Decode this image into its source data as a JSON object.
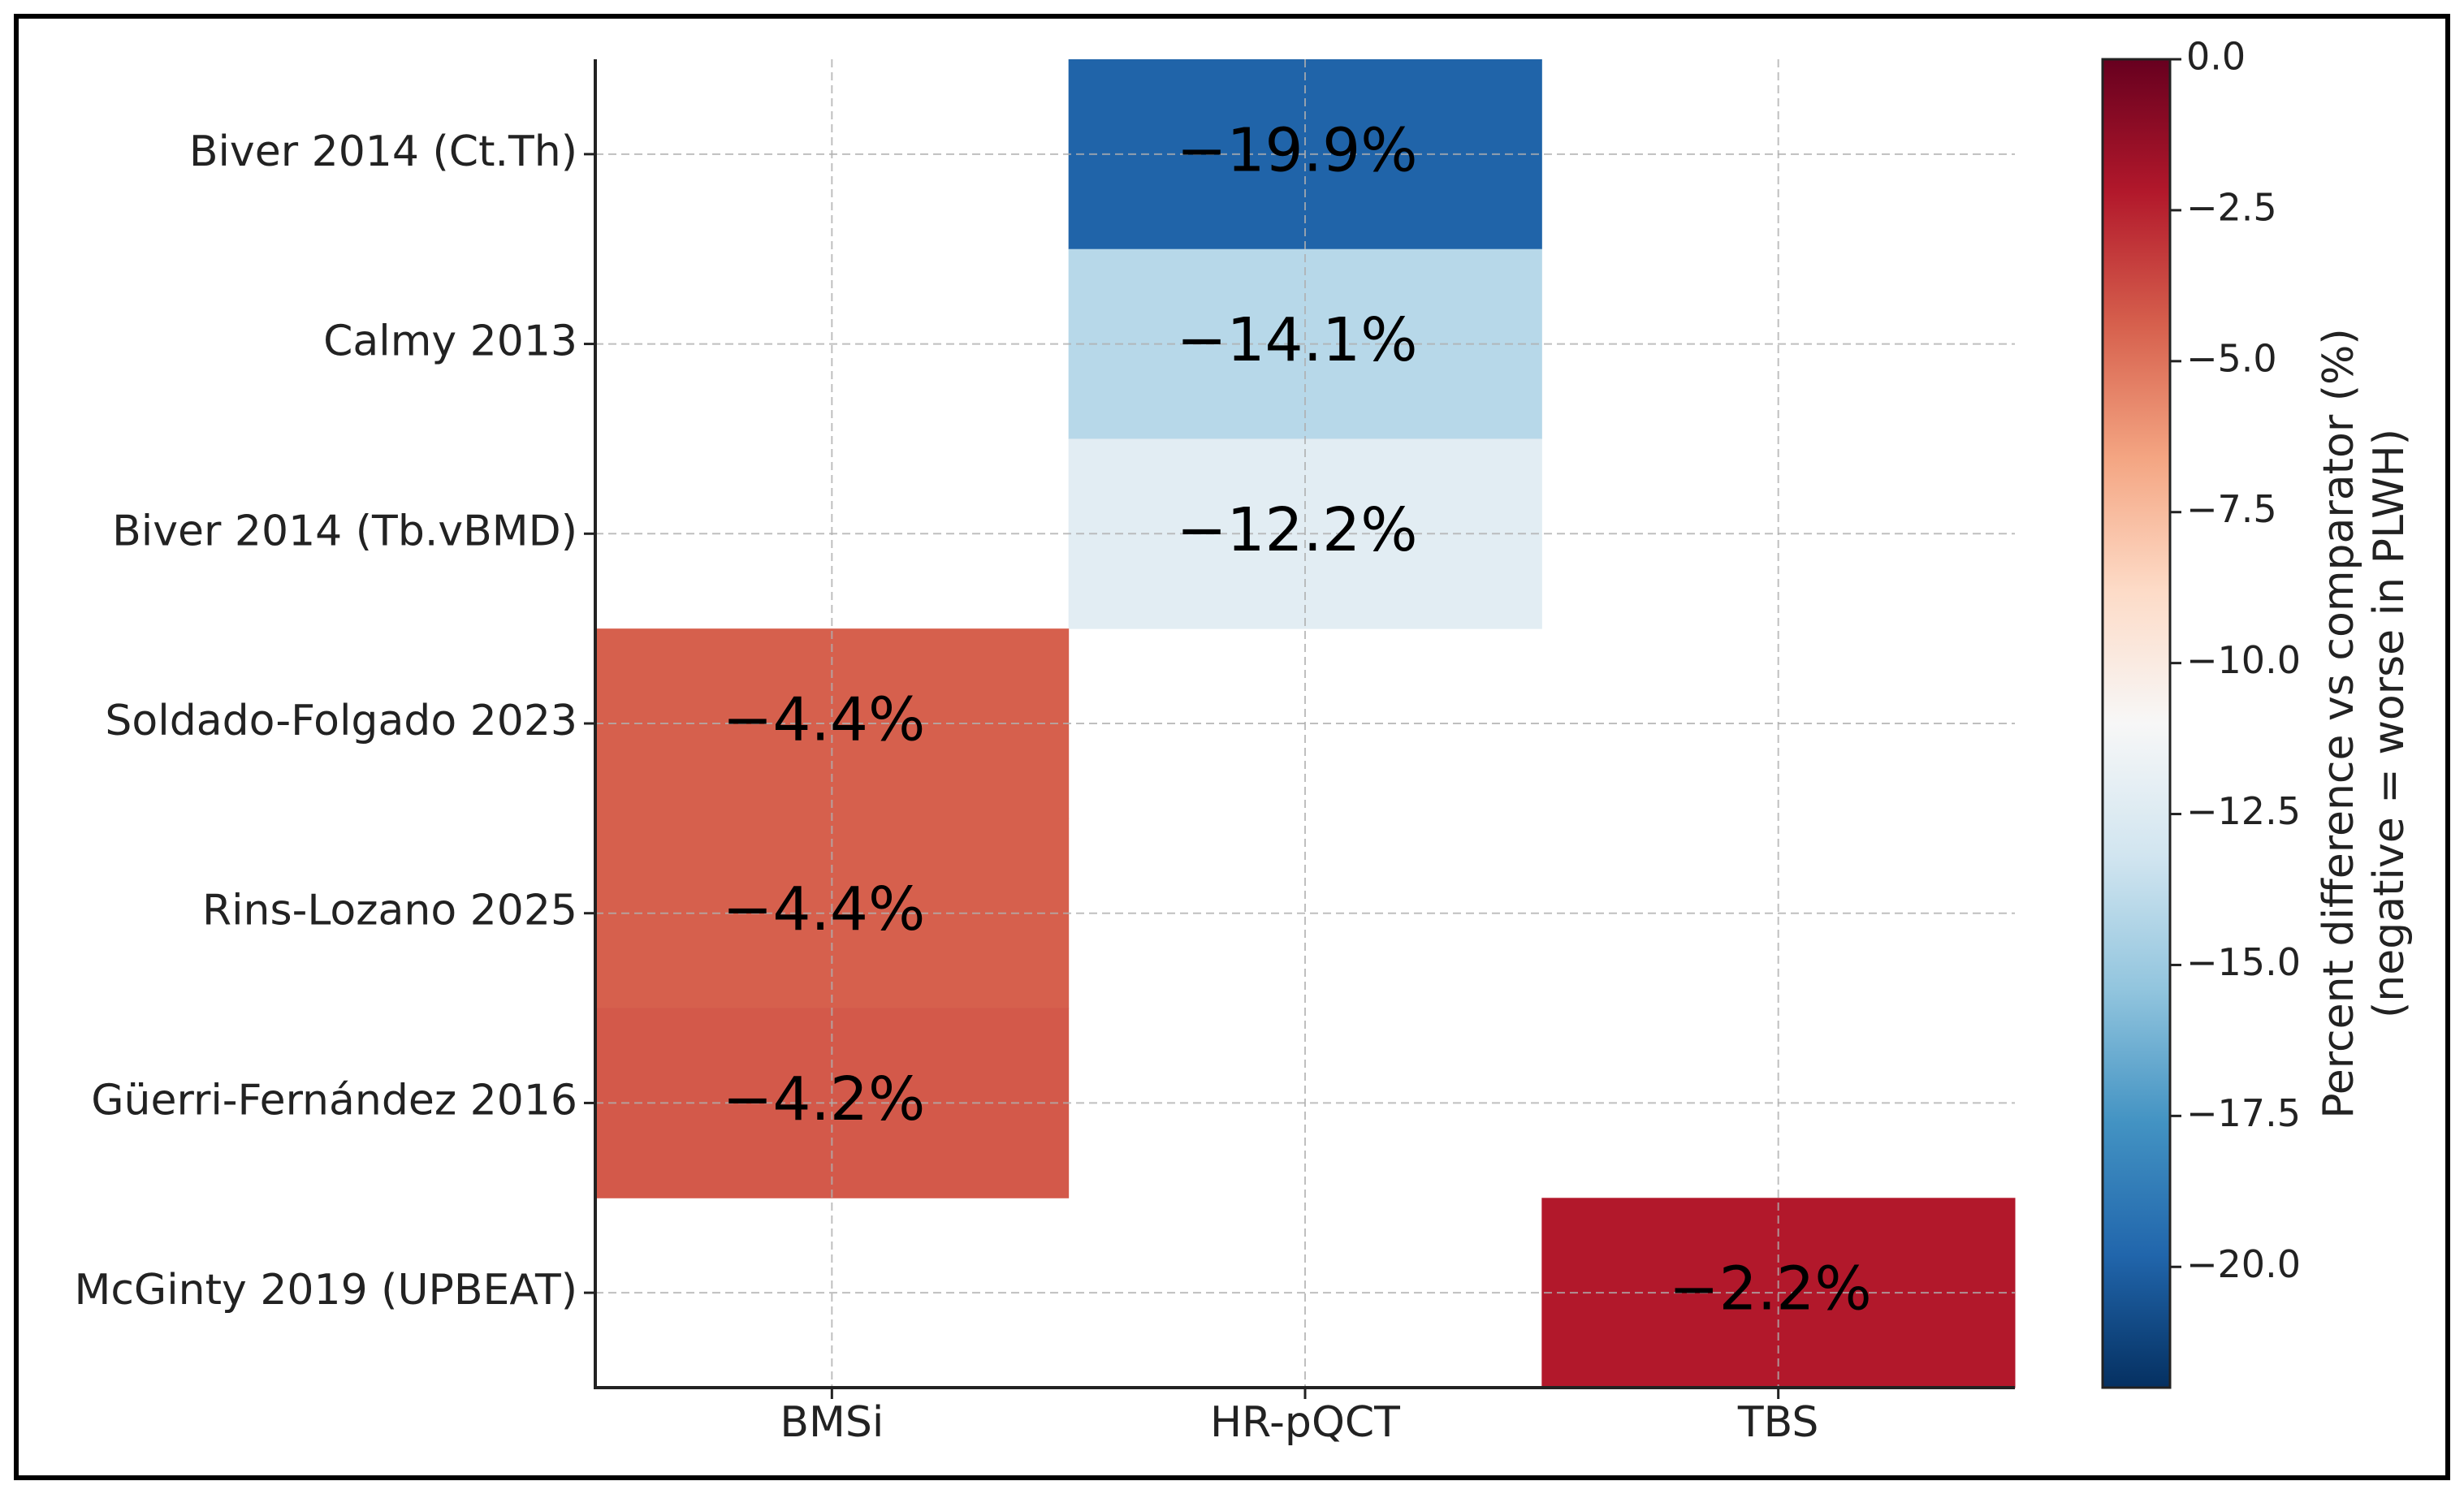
{
  "chart_data": {
    "type": "heatmap",
    "columns": [
      "BMSi",
      "HR-pQCT",
      "TBS"
    ],
    "rows": [
      "Biver 2014 (Ct.Th)",
      "Calmy 2013",
      "Biver 2014 (Tb.vBMD)",
      "Soldado-Folgado 2023",
      "Rins-Lozano 2025",
      "Güerri-Fernández 2016",
      "McGinty 2019 (UPBEAT)"
    ],
    "values": [
      [
        null,
        -19.9,
        null
      ],
      [
        null,
        -14.1,
        null
      ],
      [
        null,
        -12.2,
        null
      ],
      [
        -4.4,
        null,
        null
      ],
      [
        -4.4,
        null,
        null
      ],
      [
        -4.2,
        null,
        null
      ],
      [
        null,
        null,
        -2.2
      ]
    ],
    "value_labels": [
      [
        null,
        "−19.9%",
        null
      ],
      [
        null,
        "−14.1%",
        null
      ],
      [
        null,
        "−12.2%",
        null
      ],
      [
        "−4.4%",
        null,
        null
      ],
      [
        "−4.4%",
        null,
        null
      ],
      [
        "−4.2%",
        null,
        null
      ],
      [
        null,
        null,
        "−2.2%"
      ]
    ],
    "colormap": "RdBu_r",
    "colorbar_lim": [
      -22,
      0
    ],
    "colorbar_ticks": [
      {
        "value": 0,
        "label": "0.0"
      },
      {
        "value": -2.5,
        "label": "−2.5"
      },
      {
        "value": -5,
        "label": "−5.0"
      },
      {
        "value": -7.5,
        "label": "−7.5"
      },
      {
        "value": -10,
        "label": "−10.0"
      },
      {
        "value": -12.5,
        "label": "−12.5"
      },
      {
        "value": -15,
        "label": "−15.0"
      },
      {
        "value": -17.5,
        "label": "−17.5"
      },
      {
        "value": -20,
        "label": "−20.0"
      }
    ],
    "colorbar_label": [
      "Percent difference vs comparator (%)",
      "(negative = worse in PLWH)"
    ],
    "grid": true
  }
}
